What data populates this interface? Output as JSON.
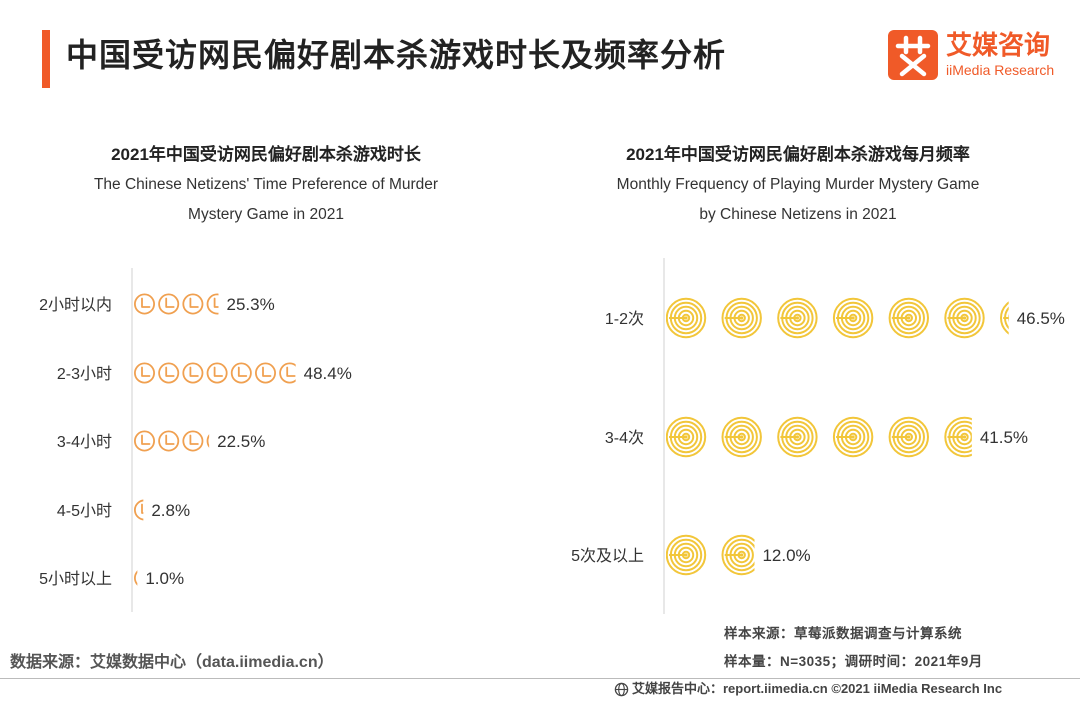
{
  "header": {
    "title": "中国受访网民偏好剧本杀游戏时长及频率分析",
    "logo": {
      "name": "艾媒咨询",
      "sub": "iiMedia Research"
    }
  },
  "colors": {
    "accent": "#f05a28",
    "clock_icon": "#f0a050",
    "target_icon": "#f2c63a"
  },
  "chart_data": [
    {
      "type": "bar",
      "icon": "clock-icon",
      "title": "2021年中国受访网民偏好剧本杀游戏时长",
      "subtitle": "The Chinese Netizens' Time Preference of Murder Mystery Game in 2021",
      "subtitle_lines": [
        "The Chinese Netizens' Time Preference of Murder",
        "Mystery Game in 2021"
      ],
      "categories": [
        "2小时以内",
        "2-3小时",
        "3-4小时",
        "4-5小时",
        "5小时以上"
      ],
      "values": [
        25.3,
        48.4,
        22.5,
        2.8,
        1.0
      ],
      "value_labels": [
        "25.3%",
        "48.4%",
        "22.5%",
        "2.8%",
        "1.0%"
      ],
      "orientation": "horizontal"
    },
    {
      "type": "bar",
      "icon": "target-icon",
      "title": "2021年中国受访网民偏好剧本杀游戏每月频率",
      "subtitle": "Monthly Frequency of Playing Murder Mystery Game by Chinese Netizens in 2021",
      "subtitle_lines": [
        "Monthly Frequency of Playing Murder Mystery Game",
        "by Chinese Netizens in 2021"
      ],
      "categories": [
        "1-2次",
        "3-4次",
        "5次及以上"
      ],
      "values": [
        46.5,
        41.5,
        12.0
      ],
      "value_labels": [
        "46.5%",
        "41.5%",
        "12.0%"
      ],
      "orientation": "horizontal"
    }
  ],
  "footer": {
    "source": "数据来源：艾媒数据中心（data.iimedia.cn）",
    "sample_source": "样本来源：草莓派数据调查与计算系统",
    "sample_size": "样本量：N=3035；调研时间：2021年9月",
    "copyright": "艾媒报告中心：report.iimedia.cn   ©2021  iiMedia Research  Inc"
  }
}
